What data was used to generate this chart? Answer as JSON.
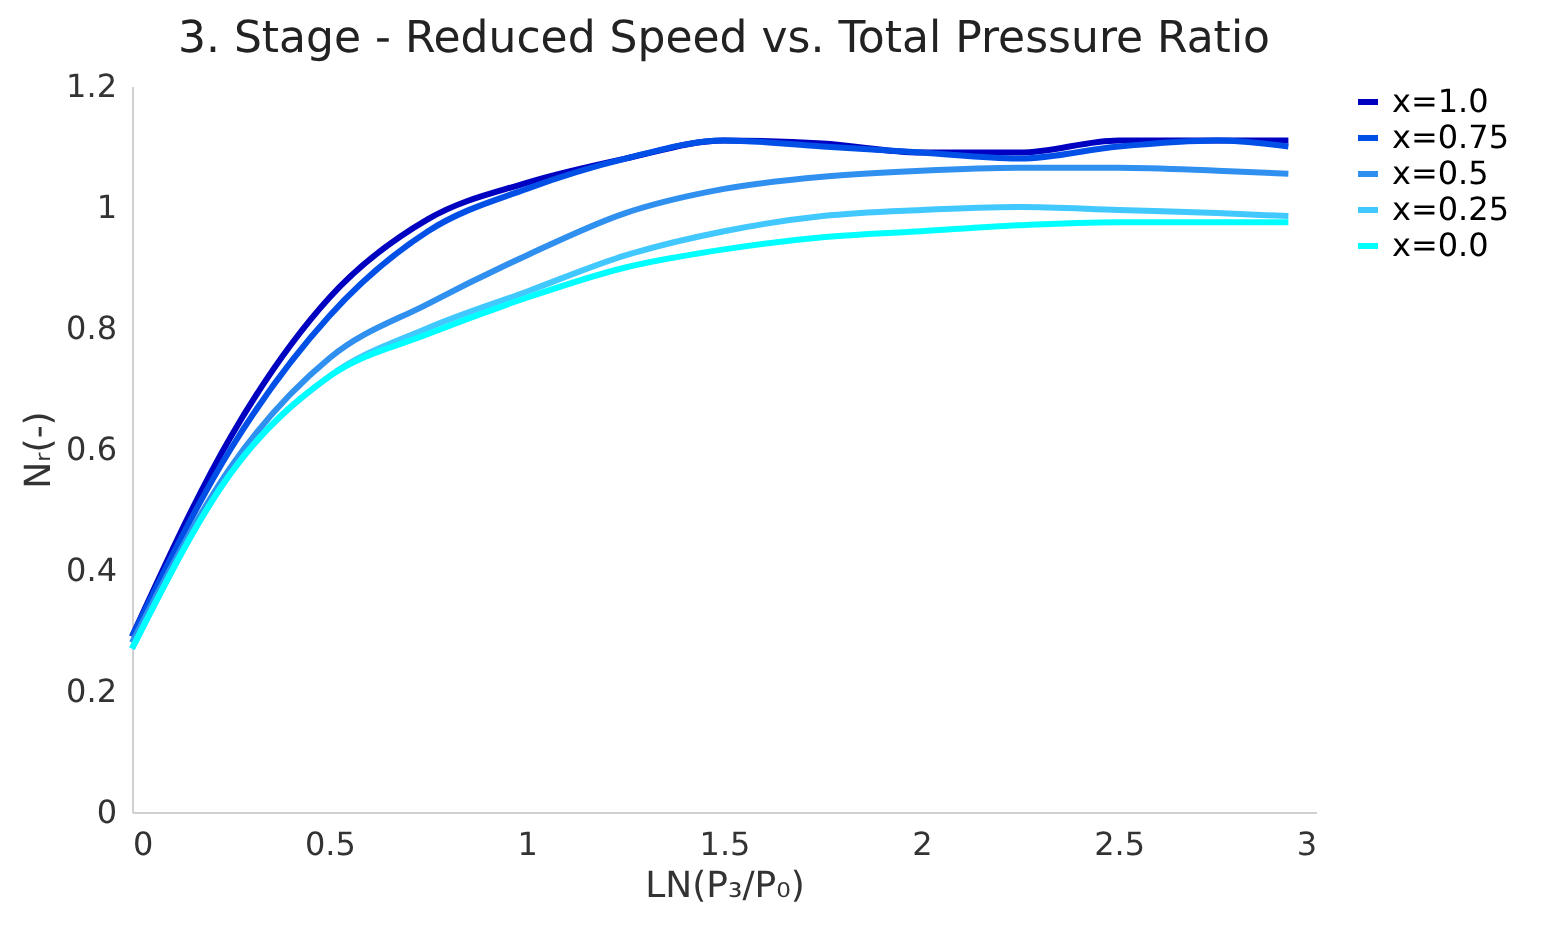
{
  "chart_data": {
    "type": "line",
    "title": "3. Stage - Reduced Speed vs. Total Pressure Ratio",
    "xlabel": "LN(P₃/P₀)",
    "ylabel": "Nᵣ(-)",
    "x": [
      0,
      0.25,
      0.5,
      0.75,
      1,
      1.25,
      1.5,
      1.75,
      2,
      2.25,
      2.5,
      2.75,
      2.93
    ],
    "series": [
      {
        "name": "x=1.0",
        "color": "#0000c0",
        "values": [
          0.29,
          0.62,
          0.85,
          0.98,
          1.04,
          1.08,
          1.11,
          1.105,
          1.09,
          1.09,
          1.11,
          1.11,
          1.11
        ]
      },
      {
        "name": "x=0.75",
        "color": "#0050e8",
        "values": [
          0.29,
          0.6,
          0.82,
          0.96,
          1.03,
          1.08,
          1.11,
          1.1,
          1.09,
          1.08,
          1.1,
          1.11,
          1.1
        ]
      },
      {
        "name": "x=0.5",
        "color": "#3090f0",
        "values": [
          0.28,
          0.57,
          0.75,
          0.84,
          0.92,
          0.99,
          1.03,
          1.05,
          1.06,
          1.065,
          1.065,
          1.06,
          1.055
        ]
      },
      {
        "name": "x=0.25",
        "color": "#40c8ff",
        "values": [
          0.27,
          0.56,
          0.72,
          0.8,
          0.86,
          0.92,
          0.96,
          0.985,
          0.995,
          1.0,
          0.995,
          0.99,
          0.985
        ]
      },
      {
        "name": "x=0.0",
        "color": "#00ffff",
        "values": [
          0.27,
          0.56,
          0.72,
          0.79,
          0.85,
          0.9,
          0.93,
          0.95,
          0.96,
          0.97,
          0.975,
          0.975,
          0.975
        ]
      }
    ],
    "xlim": [
      0,
      3
    ],
    "xticks": [
      0,
      0.5,
      1,
      1.5,
      2,
      2.5,
      3
    ],
    "ylim": [
      0,
      1.2
    ],
    "yticks": [
      0,
      0.2,
      0.4,
      0.6,
      0.8,
      1,
      1.2
    ],
    "grid": false,
    "legend": "right",
    "marker": "none",
    "line_style": "solid"
  }
}
